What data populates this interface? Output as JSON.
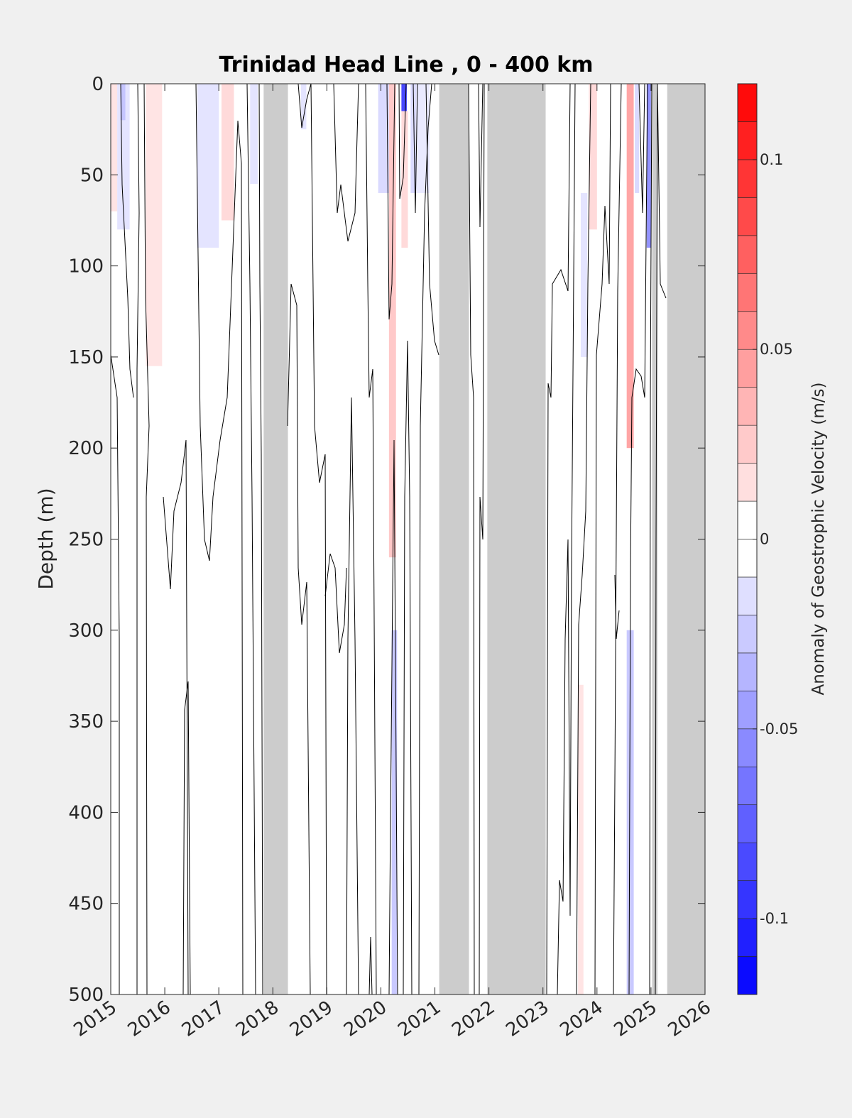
{
  "chart_data": {
    "type": "heatmap",
    "title": "Trinidad Head Line , 0 - 400 km",
    "xlabel": "",
    "ylabel": "Depth (m)",
    "xlim": [
      2015,
      2026
    ],
    "ylim": [
      0,
      500
    ],
    "y_reversed": true,
    "x_ticks": [
      "2015",
      "2016",
      "2017",
      "2018",
      "2019",
      "2020",
      "2021",
      "2022",
      "2023",
      "2024",
      "2025",
      "2026"
    ],
    "y_ticks": [
      "0",
      "50",
      "100",
      "150",
      "200",
      "250",
      "300",
      "350",
      "400",
      "450",
      "500"
    ],
    "colorbar": {
      "label": "Anomaly of Geostrophic Velocity (m/s)",
      "range": [
        -0.12,
        0.12
      ],
      "levels": 24,
      "ticks": [
        "-0.1",
        "-0.05",
        "0",
        "0.05",
        "0.1"
      ],
      "tick_values": [
        -0.1,
        -0.05,
        0,
        0.05,
        0.1
      ],
      "colormap": "blue-white-red"
    },
    "no_data_periods": [
      [
        2017.83,
        2018.28
      ],
      [
        2021.08,
        2021.63
      ],
      [
        2021.97,
        2023.05
      ],
      [
        2025.02,
        2025.12
      ],
      [
        2025.3,
        2026.0
      ]
    ],
    "anomaly_patches": [
      {
        "x0": 2015.0,
        "x1": 2015.12,
        "d0": 0,
        "d1": 70,
        "value": 0.015
      },
      {
        "x0": 2015.12,
        "x1": 2015.35,
        "d0": 0,
        "d1": 80,
        "value": -0.015
      },
      {
        "x0": 2015.18,
        "x1": 2015.27,
        "d0": 0,
        "d1": 20,
        "value": -0.03
      },
      {
        "x0": 2015.65,
        "x1": 2015.95,
        "d0": 0,
        "d1": 155,
        "value": 0.015
      },
      {
        "x0": 2016.6,
        "x1": 2017.0,
        "d0": 0,
        "d1": 90,
        "value": -0.015
      },
      {
        "x0": 2017.05,
        "x1": 2017.28,
        "d0": 0,
        "d1": 75,
        "value": 0.02
      },
      {
        "x0": 2017.58,
        "x1": 2017.72,
        "d0": 0,
        "d1": 55,
        "value": -0.015
      },
      {
        "x0": 2018.52,
        "x1": 2018.62,
        "d0": 0,
        "d1": 25,
        "value": -0.015
      },
      {
        "x0": 2019.95,
        "x1": 2020.15,
        "d0": 0,
        "d1": 60,
        "value": -0.02
      },
      {
        "x0": 2020.15,
        "x1": 2020.28,
        "d0": 0,
        "d1": 260,
        "value": 0.03
      },
      {
        "x0": 2020.2,
        "x1": 2020.3,
        "d0": 300,
        "d1": 500,
        "value": -0.03
      },
      {
        "x0": 2020.38,
        "x1": 2020.48,
        "d0": 0,
        "d1": 15,
        "value": -0.1
      },
      {
        "x0": 2020.38,
        "x1": 2020.5,
        "d0": 15,
        "d1": 90,
        "value": 0.02
      },
      {
        "x0": 2020.55,
        "x1": 2020.65,
        "d0": 0,
        "d1": 60,
        "value": -0.02
      },
      {
        "x0": 2020.65,
        "x1": 2020.9,
        "d0": 0,
        "d1": 60,
        "value": -0.012
      },
      {
        "x0": 2023.65,
        "x1": 2023.75,
        "d0": 330,
        "d1": 500,
        "value": 0.015
      },
      {
        "x0": 2023.7,
        "x1": 2023.82,
        "d0": 60,
        "d1": 150,
        "value": -0.015
      },
      {
        "x0": 2023.85,
        "x1": 2024.0,
        "d0": 0,
        "d1": 80,
        "value": 0.02
      },
      {
        "x0": 2024.55,
        "x1": 2024.68,
        "d0": 0,
        "d1": 200,
        "value": 0.05
      },
      {
        "x0": 2024.55,
        "x1": 2024.68,
        "d0": 300,
        "d1": 500,
        "value": -0.03
      },
      {
        "x0": 2024.7,
        "x1": 2024.78,
        "d0": 0,
        "d1": 60,
        "value": -0.02
      },
      {
        "x0": 2024.92,
        "x1": 2025.0,
        "d0": 0,
        "d1": 90,
        "value": -0.06
      }
    ]
  }
}
